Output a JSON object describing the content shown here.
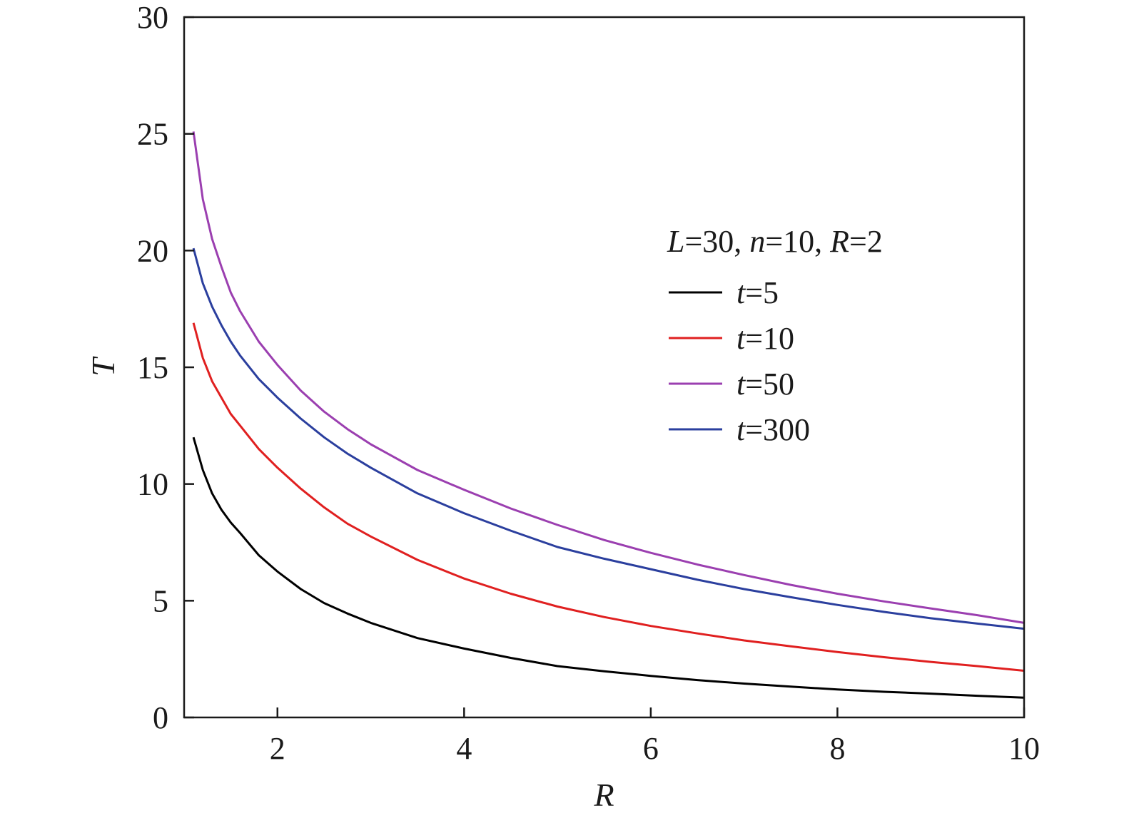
{
  "chart_data": {
    "type": "line",
    "title": "",
    "xlabel": "R",
    "ylabel": "T",
    "xlim": [
      1,
      10
    ],
    "ylim": [
      0,
      30
    ],
    "xticks": [
      2,
      4,
      6,
      8,
      10
    ],
    "yticks": [
      0,
      5,
      10,
      15,
      20,
      25,
      30
    ],
    "grid": false,
    "legend_position": "right",
    "legend_title": {
      "parts": [
        {
          "text": "L",
          "italic": true
        },
        {
          "text": "=30, ",
          "italic": false
        },
        {
          "text": "n",
          "italic": true
        },
        {
          "text": "=10, ",
          "italic": false
        },
        {
          "text": "R",
          "italic": true
        },
        {
          "text": "=2",
          "italic": false
        }
      ]
    },
    "series": [
      {
        "name": "t=5",
        "name_italic": "t",
        "name_rest": "=5",
        "color": "#000000",
        "x": [
          1.1,
          1.2,
          1.3,
          1.4,
          1.5,
          1.6,
          1.8,
          2.0,
          2.25,
          2.5,
          2.75,
          3.0,
          3.5,
          4.0,
          4.5,
          5.0,
          5.5,
          6.0,
          6.5,
          7.0,
          7.5,
          8.0,
          8.5,
          9.0,
          9.5,
          10.0
        ],
        "values": [
          12.0,
          10.6,
          9.6,
          8.9,
          8.35,
          7.9,
          6.95,
          6.25,
          5.5,
          4.9,
          4.45,
          4.05,
          3.4,
          2.95,
          2.55,
          2.2,
          1.98,
          1.78,
          1.6,
          1.45,
          1.32,
          1.2,
          1.1,
          1.02,
          0.93,
          0.85
        ]
      },
      {
        "name": "t=10",
        "name_italic": "t",
        "name_rest": "=10",
        "color": "#e02020",
        "x": [
          1.1,
          1.2,
          1.3,
          1.4,
          1.5,
          1.6,
          1.8,
          2.0,
          2.25,
          2.5,
          2.75,
          3.0,
          3.5,
          4.0,
          4.5,
          5.0,
          5.5,
          6.0,
          6.5,
          7.0,
          7.5,
          8.0,
          8.5,
          9.0,
          9.5,
          10.0
        ],
        "values": [
          16.9,
          15.4,
          14.4,
          13.7,
          13.0,
          12.5,
          11.5,
          10.7,
          9.8,
          9.0,
          8.3,
          7.75,
          6.75,
          5.95,
          5.3,
          4.75,
          4.3,
          3.92,
          3.6,
          3.3,
          3.05,
          2.8,
          2.58,
          2.38,
          2.2,
          2.0
        ]
      },
      {
        "name": "t=50",
        "name_italic": "t",
        "name_rest": "=50",
        "color": "#9b3fb0",
        "x": [
          1.1,
          1.2,
          1.3,
          1.4,
          1.5,
          1.6,
          1.8,
          2.0,
          2.25,
          2.5,
          2.75,
          3.0,
          3.5,
          4.0,
          4.5,
          5.0,
          5.5,
          6.0,
          6.5,
          7.0,
          7.5,
          8.0,
          8.5,
          9.0,
          9.5,
          10.0
        ],
        "values": [
          25.1,
          22.2,
          20.5,
          19.3,
          18.2,
          17.4,
          16.1,
          15.1,
          14.0,
          13.1,
          12.35,
          11.7,
          10.6,
          9.75,
          8.95,
          8.25,
          7.6,
          7.05,
          6.55,
          6.1,
          5.68,
          5.3,
          4.97,
          4.67,
          4.38,
          4.05
        ]
      },
      {
        "name": "t=300",
        "name_italic": "t",
        "name_rest": "=300",
        "color": "#2b3f9e",
        "x": [
          1.1,
          1.2,
          1.3,
          1.4,
          1.5,
          1.6,
          1.8,
          2.0,
          2.25,
          2.5,
          2.75,
          3.0,
          3.5,
          4.0,
          4.5,
          5.0,
          5.5,
          6.0,
          6.5,
          7.0,
          7.5,
          8.0,
          8.5,
          9.0,
          9.5,
          10.0
        ],
        "values": [
          20.1,
          18.6,
          17.6,
          16.8,
          16.1,
          15.5,
          14.5,
          13.7,
          12.8,
          12.0,
          11.3,
          10.7,
          9.6,
          8.75,
          8.0,
          7.3,
          6.8,
          6.35,
          5.9,
          5.5,
          5.15,
          4.82,
          4.52,
          4.25,
          4.02,
          3.8
        ]
      }
    ]
  }
}
